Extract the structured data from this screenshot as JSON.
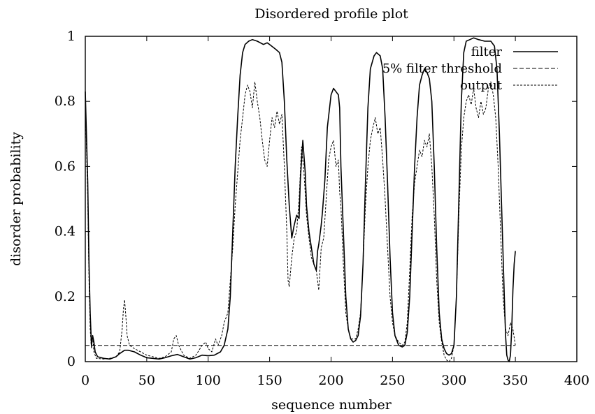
{
  "chart_data": {
    "type": "line",
    "title": "Disordered profile plot",
    "xlabel": "sequence number",
    "ylabel": "disorder probability",
    "xlim": [
      0,
      400
    ],
    "ylim": [
      0,
      1
    ],
    "xticks": [
      "0",
      "50",
      "100",
      "150",
      "200",
      "250",
      "300",
      "350",
      "400"
    ],
    "yticks": [
      "0",
      "0.2",
      "0.4",
      "0.6",
      "0.8",
      "1"
    ],
    "grid": false,
    "legend_position": "top-right",
    "series": [
      {
        "name": "filter",
        "style": "solid",
        "color": "#000000",
        "points": [
          [
            0,
            0.83
          ],
          [
            2,
            0.55
          ],
          [
            3,
            0.3
          ],
          [
            4,
            0.15
          ],
          [
            5,
            0.05
          ],
          [
            6,
            0.08
          ],
          [
            7,
            0.06
          ],
          [
            8,
            0.03
          ],
          [
            10,
            0.015
          ],
          [
            15,
            0.01
          ],
          [
            20,
            0.008
          ],
          [
            25,
            0.015
          ],
          [
            28,
            0.025
          ],
          [
            32,
            0.035
          ],
          [
            35,
            0.035
          ],
          [
            40,
            0.03
          ],
          [
            45,
            0.02
          ],
          [
            50,
            0.012
          ],
          [
            55,
            0.01
          ],
          [
            60,
            0.008
          ],
          [
            65,
            0.012
          ],
          [
            70,
            0.018
          ],
          [
            75,
            0.022
          ],
          [
            80,
            0.015
          ],
          [
            85,
            0.008
          ],
          [
            90,
            0.012
          ],
          [
            95,
            0.02
          ],
          [
            100,
            0.018
          ],
          [
            105,
            0.02
          ],
          [
            110,
            0.03
          ],
          [
            113,
            0.05
          ],
          [
            116,
            0.1
          ],
          [
            118,
            0.2
          ],
          [
            120,
            0.4
          ],
          [
            122,
            0.6
          ],
          [
            124,
            0.75
          ],
          [
            126,
            0.88
          ],
          [
            128,
            0.95
          ],
          [
            130,
            0.975
          ],
          [
            133,
            0.985
          ],
          [
            136,
            0.99
          ],
          [
            140,
            0.985
          ],
          [
            145,
            0.975
          ],
          [
            148,
            0.98
          ],
          [
            150,
            0.975
          ],
          [
            155,
            0.96
          ],
          [
            158,
            0.95
          ],
          [
            160,
            0.92
          ],
          [
            162,
            0.8
          ],
          [
            164,
            0.62
          ],
          [
            166,
            0.48
          ],
          [
            168,
            0.38
          ],
          [
            170,
            0.42
          ],
          [
            172,
            0.45
          ],
          [
            174,
            0.44
          ],
          [
            175,
            0.56
          ],
          [
            177,
            0.68
          ],
          [
            179,
            0.58
          ],
          [
            180,
            0.48
          ],
          [
            182,
            0.4
          ],
          [
            184,
            0.35
          ],
          [
            186,
            0.3
          ],
          [
            188,
            0.28
          ],
          [
            189,
            0.34
          ],
          [
            190,
            0.36
          ],
          [
            192,
            0.42
          ],
          [
            193,
            0.46
          ],
          [
            195,
            0.56
          ],
          [
            197,
            0.72
          ],
          [
            200,
            0.82
          ],
          [
            202,
            0.84
          ],
          [
            204,
            0.83
          ],
          [
            206,
            0.82
          ],
          [
            207,
            0.78
          ],
          [
            208,
            0.6
          ],
          [
            210,
            0.4
          ],
          [
            212,
            0.2
          ],
          [
            214,
            0.1
          ],
          [
            216,
            0.07
          ],
          [
            218,
            0.06
          ],
          [
            220,
            0.065
          ],
          [
            222,
            0.08
          ],
          [
            224,
            0.14
          ],
          [
            226,
            0.3
          ],
          [
            228,
            0.55
          ],
          [
            230,
            0.78
          ],
          [
            232,
            0.9
          ],
          [
            235,
            0.94
          ],
          [
            237,
            0.95
          ],
          [
            240,
            0.94
          ],
          [
            242,
            0.9
          ],
          [
            244,
            0.75
          ],
          [
            246,
            0.55
          ],
          [
            248,
            0.32
          ],
          [
            250,
            0.15
          ],
          [
            252,
            0.08
          ],
          [
            255,
            0.05
          ],
          [
            258,
            0.045
          ],
          [
            260,
            0.05
          ],
          [
            262,
            0.09
          ],
          [
            264,
            0.2
          ],
          [
            266,
            0.4
          ],
          [
            268,
            0.6
          ],
          [
            270,
            0.75
          ],
          [
            272,
            0.85
          ],
          [
            274,
            0.88
          ],
          [
            276,
            0.9
          ],
          [
            278,
            0.89
          ],
          [
            280,
            0.87
          ],
          [
            282,
            0.8
          ],
          [
            284,
            0.6
          ],
          [
            286,
            0.35
          ],
          [
            288,
            0.15
          ],
          [
            290,
            0.07
          ],
          [
            292,
            0.04
          ],
          [
            294,
            0.025
          ],
          [
            296,
            0.02
          ],
          [
            298,
            0.025
          ],
          [
            300,
            0.05
          ],
          [
            302,
            0.2
          ],
          [
            304,
            0.5
          ],
          [
            306,
            0.8
          ],
          [
            308,
            0.95
          ],
          [
            310,
            0.985
          ],
          [
            313,
            0.99
          ],
          [
            316,
            0.995
          ],
          [
            320,
            0.99
          ],
          [
            325,
            0.985
          ],
          [
            330,
            0.985
          ],
          [
            333,
            0.97
          ],
          [
            335,
            0.9
          ],
          [
            337,
            0.7
          ],
          [
            339,
            0.45
          ],
          [
            341,
            0.2
          ],
          [
            342,
            0.08
          ],
          [
            343,
            0.02
          ],
          [
            344,
            0.005
          ],
          [
            345,
            0.0
          ],
          [
            346,
            0.02
          ],
          [
            347,
            0.1
          ],
          [
            348,
            0.22
          ],
          [
            349,
            0.3
          ],
          [
            350,
            0.34
          ]
        ]
      },
      {
        "name": "5% filter threshold",
        "style": "dashed",
        "color": "#000000",
        "points": [
          [
            0,
            0.05
          ],
          [
            350,
            0.05
          ]
        ]
      },
      {
        "name": "output",
        "style": "dotted",
        "color": "#000000",
        "points": [
          [
            0,
            0.8
          ],
          [
            2,
            0.5
          ],
          [
            3,
            0.25
          ],
          [
            4,
            0.1
          ],
          [
            5,
            0.04
          ],
          [
            6,
            0.08
          ],
          [
            7,
            0.03
          ],
          [
            9,
            0.01
          ],
          [
            15,
            0.008
          ],
          [
            20,
            0.01
          ],
          [
            25,
            0.015
          ],
          [
            28,
            0.03
          ],
          [
            30,
            0.1
          ],
          [
            31,
            0.16
          ],
          [
            32,
            0.19
          ],
          [
            33,
            0.14
          ],
          [
            34,
            0.08
          ],
          [
            36,
            0.05
          ],
          [
            40,
            0.04
          ],
          [
            45,
            0.03
          ],
          [
            50,
            0.02
          ],
          [
            55,
            0.015
          ],
          [
            60,
            0.01
          ],
          [
            65,
            0.015
          ],
          [
            70,
            0.03
          ],
          [
            72,
            0.07
          ],
          [
            74,
            0.08
          ],
          [
            76,
            0.05
          ],
          [
            80,
            0.02
          ],
          [
            85,
            0.01
          ],
          [
            90,
            0.02
          ],
          [
            95,
            0.05
          ],
          [
            98,
            0.06
          ],
          [
            100,
            0.04
          ],
          [
            103,
            0.03
          ],
          [
            106,
            0.07
          ],
          [
            108,
            0.05
          ],
          [
            111,
            0.08
          ],
          [
            113,
            0.12
          ],
          [
            116,
            0.15
          ],
          [
            118,
            0.25
          ],
          [
            120,
            0.35
          ],
          [
            122,
            0.48
          ],
          [
            124,
            0.58
          ],
          [
            126,
            0.68
          ],
          [
            128,
            0.75
          ],
          [
            130,
            0.82
          ],
          [
            132,
            0.85
          ],
          [
            134,
            0.83
          ],
          [
            136,
            0.78
          ],
          [
            138,
            0.86
          ],
          [
            140,
            0.8
          ],
          [
            142,
            0.75
          ],
          [
            144,
            0.68
          ],
          [
            146,
            0.62
          ],
          [
            148,
            0.6
          ],
          [
            150,
            0.68
          ],
          [
            152,
            0.75
          ],
          [
            154,
            0.72
          ],
          [
            156,
            0.77
          ],
          [
            158,
            0.73
          ],
          [
            160,
            0.76
          ],
          [
            162,
            0.6
          ],
          [
            164,
            0.4
          ],
          [
            165,
            0.25
          ],
          [
            166,
            0.23
          ],
          [
            168,
            0.32
          ],
          [
            170,
            0.38
          ],
          [
            172,
            0.4
          ],
          [
            174,
            0.5
          ],
          [
            176,
            0.66
          ],
          [
            178,
            0.58
          ],
          [
            180,
            0.45
          ],
          [
            182,
            0.38
          ],
          [
            184,
            0.32
          ],
          [
            186,
            0.3
          ],
          [
            188,
            0.28
          ],
          [
            190,
            0.22
          ],
          [
            192,
            0.35
          ],
          [
            194,
            0.38
          ],
          [
            196,
            0.5
          ],
          [
            198,
            0.62
          ],
          [
            200,
            0.66
          ],
          [
            202,
            0.68
          ],
          [
            204,
            0.6
          ],
          [
            206,
            0.62
          ],
          [
            207,
            0.52
          ],
          [
            208,
            0.48
          ],
          [
            210,
            0.3
          ],
          [
            212,
            0.15
          ],
          [
            214,
            0.1
          ],
          [
            216,
            0.07
          ],
          [
            220,
            0.07
          ],
          [
            222,
            0.1
          ],
          [
            224,
            0.15
          ],
          [
            226,
            0.3
          ],
          [
            228,
            0.48
          ],
          [
            230,
            0.6
          ],
          [
            232,
            0.68
          ],
          [
            234,
            0.72
          ],
          [
            236,
            0.75
          ],
          [
            238,
            0.7
          ],
          [
            240,
            0.72
          ],
          [
            242,
            0.62
          ],
          [
            244,
            0.5
          ],
          [
            246,
            0.35
          ],
          [
            248,
            0.2
          ],
          [
            250,
            0.12
          ],
          [
            252,
            0.08
          ],
          [
            255,
            0.06
          ],
          [
            258,
            0.05
          ],
          [
            260,
            0.06
          ],
          [
            262,
            0.12
          ],
          [
            264,
            0.28
          ],
          [
            266,
            0.45
          ],
          [
            268,
            0.55
          ],
          [
            270,
            0.6
          ],
          [
            272,
            0.65
          ],
          [
            274,
            0.63
          ],
          [
            276,
            0.68
          ],
          [
            278,
            0.66
          ],
          [
            280,
            0.7
          ],
          [
            282,
            0.6
          ],
          [
            284,
            0.45
          ],
          [
            286,
            0.25
          ],
          [
            288,
            0.12
          ],
          [
            290,
            0.06
          ],
          [
            292,
            0.02
          ],
          [
            294,
            0.005
          ],
          [
            296,
            0.0
          ],
          [
            298,
            0.01
          ],
          [
            300,
            0.05
          ],
          [
            302,
            0.2
          ],
          [
            304,
            0.45
          ],
          [
            306,
            0.65
          ],
          [
            308,
            0.75
          ],
          [
            310,
            0.8
          ],
          [
            312,
            0.82
          ],
          [
            314,
            0.79
          ],
          [
            316,
            0.84
          ],
          [
            318,
            0.78
          ],
          [
            320,
            0.75
          ],
          [
            322,
            0.8
          ],
          [
            324,
            0.76
          ],
          [
            326,
            0.78
          ],
          [
            328,
            0.84
          ],
          [
            330,
            0.86
          ],
          [
            332,
            0.82
          ],
          [
            334,
            0.75
          ],
          [
            336,
            0.6
          ],
          [
            338,
            0.4
          ],
          [
            340,
            0.2
          ],
          [
            342,
            0.1
          ],
          [
            344,
            0.08
          ],
          [
            346,
            0.12
          ],
          [
            348,
            0.1
          ],
          [
            350,
            0.05
          ]
        ]
      }
    ]
  }
}
